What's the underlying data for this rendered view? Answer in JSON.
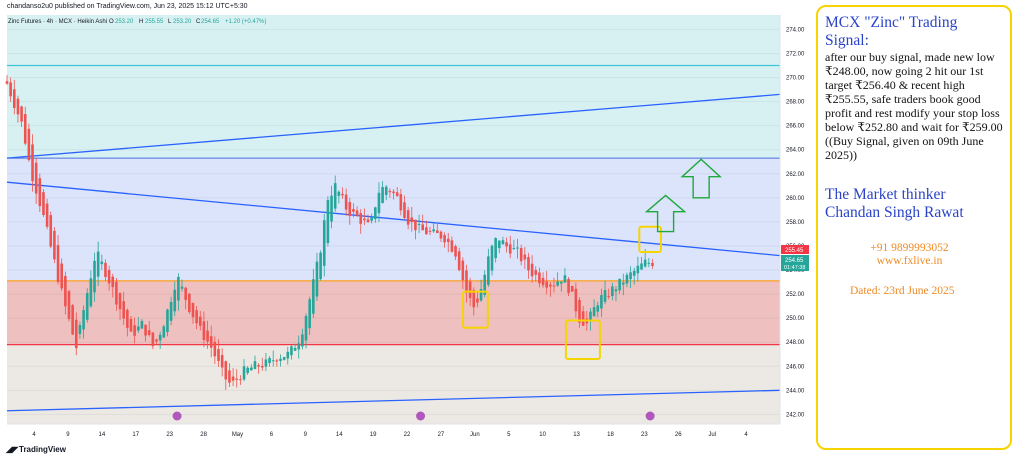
{
  "publisher": "chandanso2u0 published on TradingView.com, Jun 23, 2025 15:12 UTC+5:30",
  "footer_logo": "TradingView",
  "legend": {
    "symbol": "Zinc Futures · 4h · MCX · Heikin Ashi",
    "o_label": "O",
    "o_value": "253.20",
    "h_label": "H",
    "h_value": "255.55",
    "l_label": "L",
    "l_value": "253.20",
    "c_label": "C",
    "c_value": "254.65",
    "change": "+1.20 (+0.47%)"
  },
  "price_labels": {
    "level_1": "255.45",
    "last": "254.65",
    "countdown": "01:47:38"
  },
  "colors": {
    "up": "#26a69a",
    "down": "#ef5350",
    "trend": "#2962ff",
    "top_zone": "#d7f1f3",
    "mid_zone": "#dbe4fb",
    "red_zone": "#efc0c0",
    "bottom_zone": "#ece9e4",
    "highlight_box": "#f5d400",
    "arrow": "#1fa83c",
    "orange_line": "#ff9f1a",
    "red_line": "#f23645"
  },
  "chart_data": {
    "type": "candlestick",
    "ylim": [
      241.2,
      275.2
    ],
    "ticks": [
      242.0,
      244.0,
      246.0,
      248.0,
      250.0,
      252.0,
      254.0,
      256.0,
      258.0,
      260.0,
      262.0,
      264.0,
      266.0,
      268.0,
      270.0,
      272.0,
      274.0
    ],
    "x_labels": [
      "4",
      "9",
      "14",
      "17",
      "23",
      "28",
      "May",
      "6",
      "9",
      "14",
      "19",
      "22",
      "27",
      "Jun",
      "5",
      "10",
      "13",
      "18",
      "23",
      "26",
      "Jul",
      "4"
    ],
    "horizontal_levels": {
      "cyan": 271.0,
      "top_zone_bottom": 263.3,
      "orange": 253.1,
      "red": 247.8
    },
    "trendlines": [
      {
        "name": "upper-channel",
        "from": [
          0,
          263.3
        ],
        "to": [
          1,
          268.6
        ]
      },
      {
        "name": "descending",
        "from": [
          0,
          261.3
        ],
        "to": [
          1,
          255.2
        ]
      },
      {
        "name": "lower-channel",
        "from": [
          0,
          242.3
        ],
        "to": [
          1,
          244.0
        ]
      }
    ],
    "close_path": [
      [
        0.0,
        269.5
      ],
      [
        0.02,
        266.0
      ],
      [
        0.03,
        262.5
      ],
      [
        0.045,
        259.0
      ],
      [
        0.06,
        255.0
      ],
      [
        0.075,
        251.0
      ],
      [
        0.09,
        247.5
      ],
      [
        0.1,
        251.0
      ],
      [
        0.115,
        255.5
      ],
      [
        0.13,
        253.5
      ],
      [
        0.145,
        251.0
      ],
      [
        0.16,
        248.5
      ],
      [
        0.175,
        249.5
      ],
      [
        0.19,
        247.5
      ],
      [
        0.205,
        250.0
      ],
      [
        0.22,
        253.5
      ],
      [
        0.235,
        251.0
      ],
      [
        0.25,
        249.0
      ],
      [
        0.265,
        247.5
      ],
      [
        0.28,
        245.2
      ],
      [
        0.29,
        244.4
      ],
      [
        0.305,
        245.5
      ],
      [
        0.32,
        246.0
      ],
      [
        0.335,
        246.2
      ],
      [
        0.35,
        246.8
      ],
      [
        0.365,
        247.0
      ],
      [
        0.38,
        248.5
      ],
      [
        0.395,
        252.5
      ],
      [
        0.405,
        255.5
      ],
      [
        0.415,
        260.0
      ],
      [
        0.425,
        261.0
      ],
      [
        0.44,
        259.0
      ],
      [
        0.455,
        258.3
      ],
      [
        0.47,
        257.5
      ],
      [
        0.48,
        260.5
      ],
      [
        0.49,
        261.0
      ],
      [
        0.505,
        260.0
      ],
      [
        0.52,
        258.0
      ],
      [
        0.535,
        257.3
      ],
      [
        0.55,
        257.0
      ],
      [
        0.565,
        256.8
      ],
      [
        0.58,
        255.5
      ],
      [
        0.595,
        252.0
      ],
      [
        0.605,
        250.8
      ],
      [
        0.615,
        252.8
      ],
      [
        0.625,
        255.5
      ],
      [
        0.635,
        256.8
      ],
      [
        0.645,
        256.0
      ],
      [
        0.66,
        255.5
      ],
      [
        0.675,
        254.0
      ],
      [
        0.69,
        253.2
      ],
      [
        0.705,
        252.8
      ],
      [
        0.72,
        253.5
      ],
      [
        0.73,
        252.0
      ],
      [
        0.74,
        250.0
      ],
      [
        0.75,
        249.5
      ],
      [
        0.765,
        251.5
      ],
      [
        0.78,
        252.2
      ],
      [
        0.795,
        253.0
      ],
      [
        0.81,
        253.8
      ],
      [
        0.825,
        254.6
      ],
      [
        0.835,
        254.65
      ]
    ],
    "highlight_boxes": [
      {
        "x0": 0.59,
        "x1": 0.622,
        "y0": 252.2,
        "y1": 249.2
      },
      {
        "x0": 0.723,
        "x1": 0.767,
        "y0": 249.8,
        "y1": 246.6
      },
      {
        "x0": 0.818,
        "x1": 0.846,
        "y0": 257.6,
        "y1": 255.5
      }
    ],
    "arrows": [
      {
        "cx": 0.852,
        "y_tip": 260.2,
        "y_base": 257.2
      },
      {
        "cx": 0.898,
        "y_tip": 263.2,
        "y_base": 260.0
      }
    ],
    "event_markers": [
      0.22,
      0.535,
      0.832
    ]
  },
  "signal": {
    "title": "MCX \"Zinc\" Trading Signal:",
    "body": "after our buy signal, made new low ₹248.00, now going 2 hit our 1st target ₹256.40 & recent high ₹255.55, safe traders book good profit and rest modify your stop loss below ₹252.80 and wait for ₹259.00 ((Buy Signal, given on 09th June 2025))",
    "brand_line1": "The Market thinker",
    "brand_line2": "Chandan Singh Rawat",
    "phone": "+91 9899993052",
    "website": "www.fxlive.in",
    "date": "Dated: 23rd June 2025"
  }
}
